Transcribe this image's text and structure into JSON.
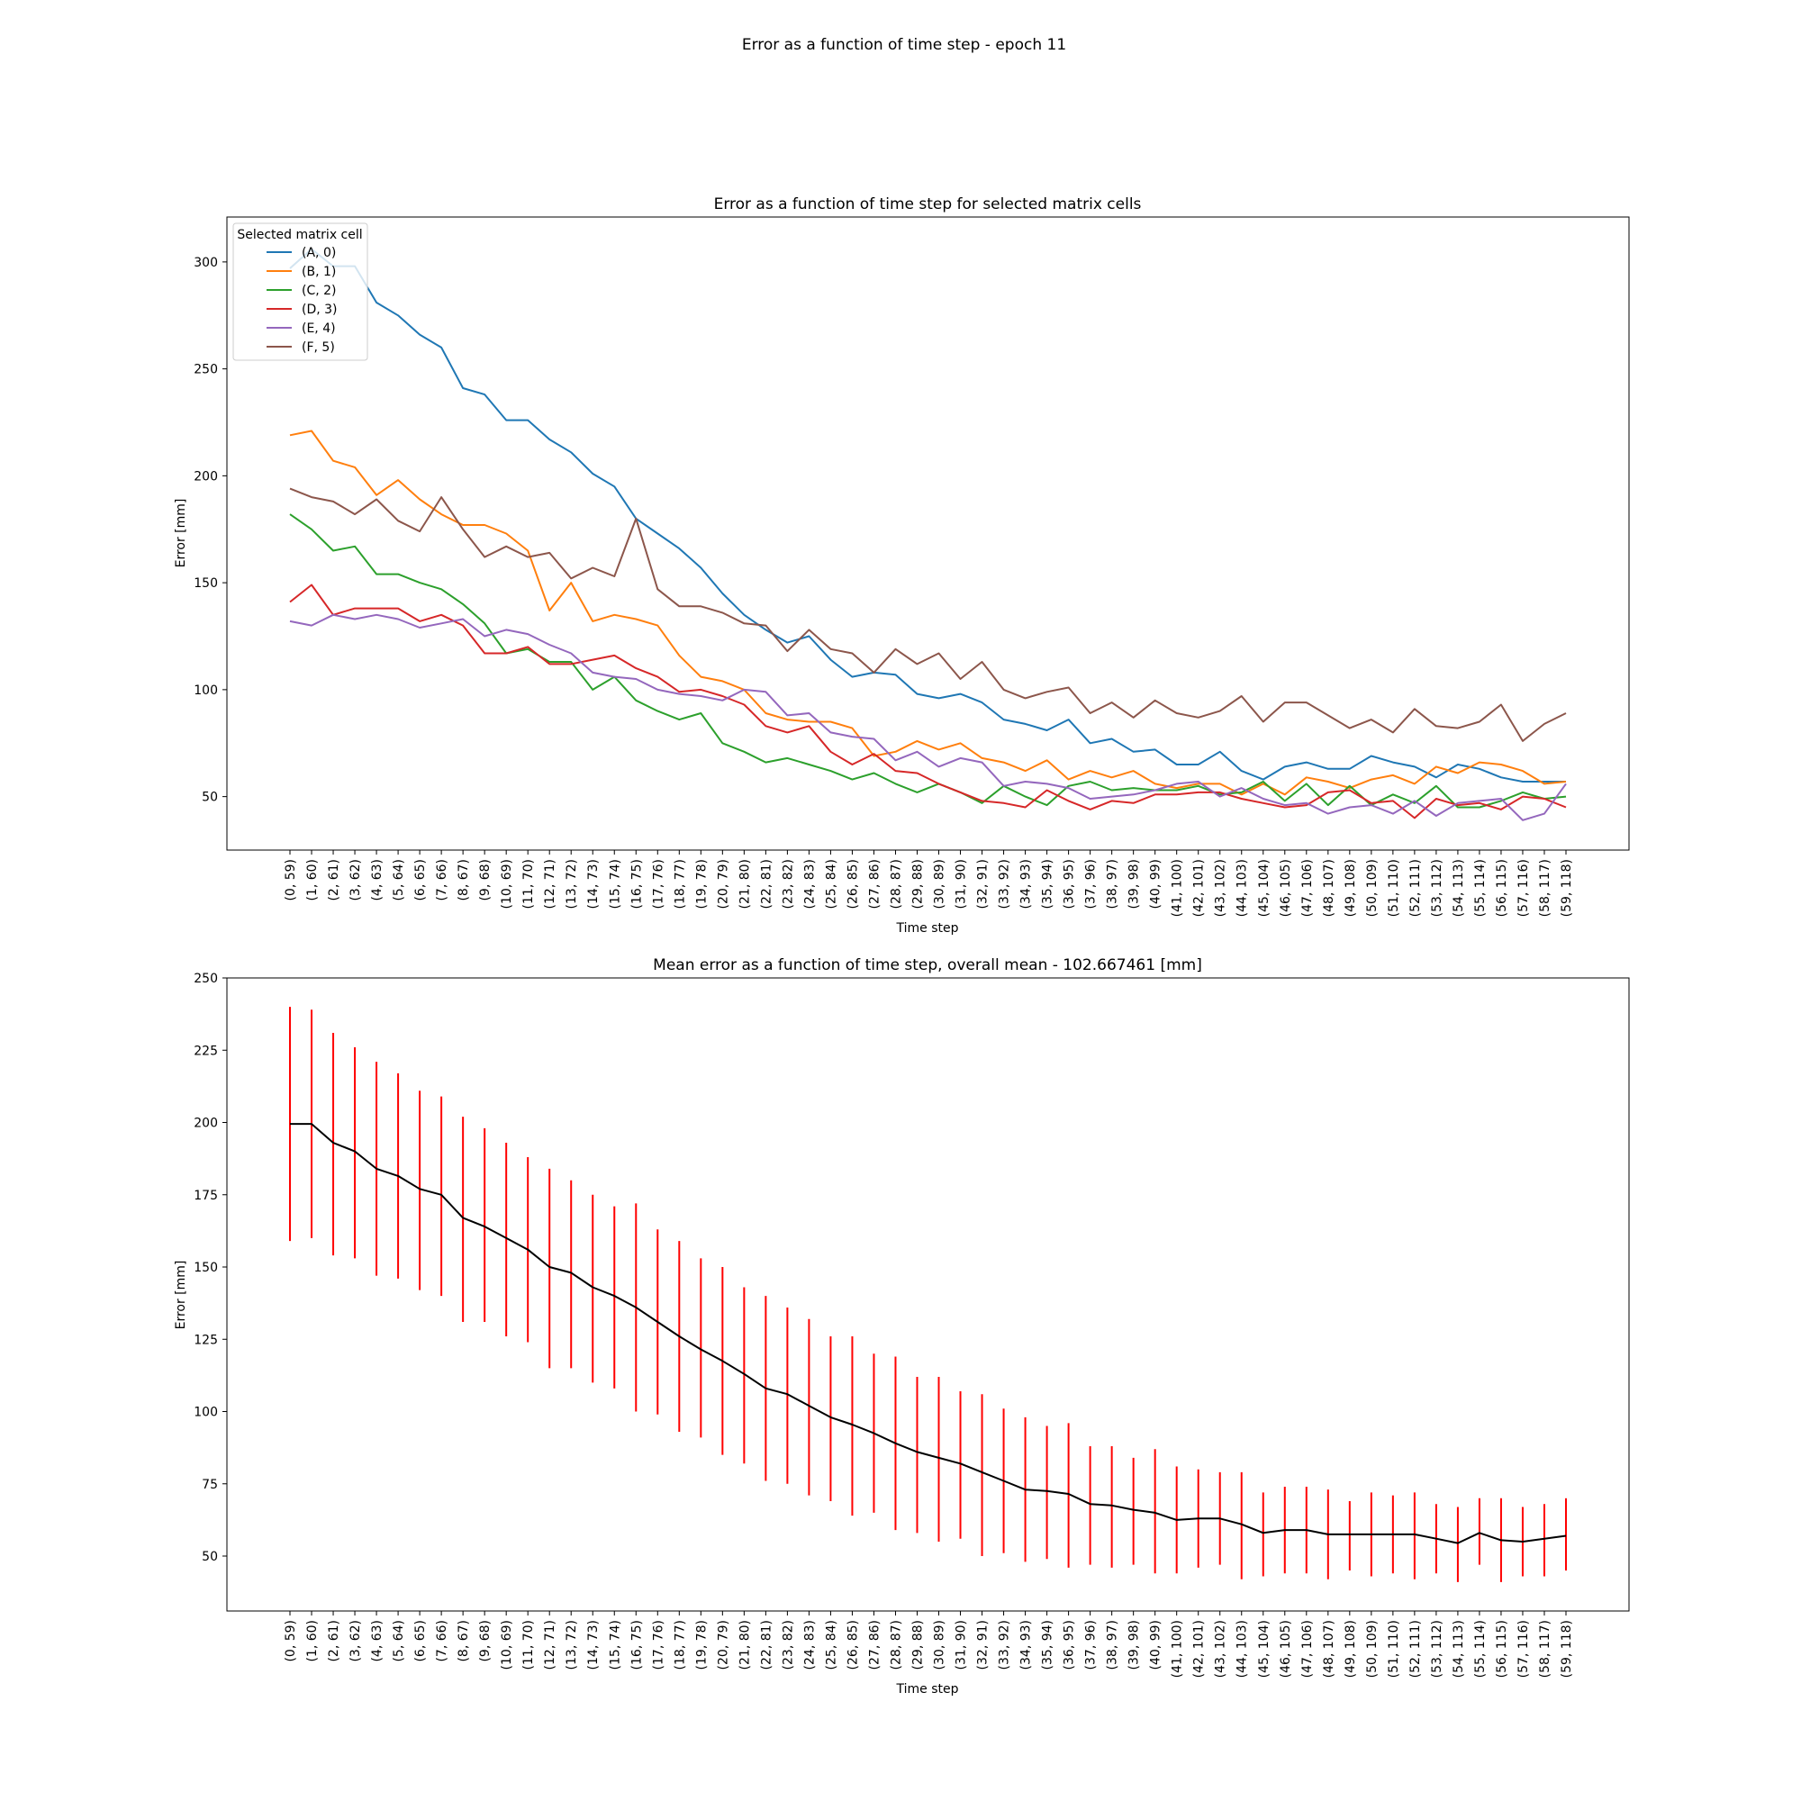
{
  "figure_title": "Error as a function of time step - epoch 11",
  "chart_data": [
    {
      "type": "line",
      "title": "Error as a function of time step for selected matrix cells",
      "xlabel": "Time step",
      "ylabel": "Error [mm]",
      "ylim": [
        25,
        321
      ],
      "yticks": [
        50,
        100,
        150,
        200,
        250,
        300
      ],
      "categories": [
        "(0, 59)",
        "(1, 60)",
        "(2, 61)",
        "(3, 62)",
        "(4, 63)",
        "(5, 64)",
        "(6, 65)",
        "(7, 66)",
        "(8, 67)",
        "(9, 68)",
        "(10, 69)",
        "(11, 70)",
        "(12, 71)",
        "(13, 72)",
        "(14, 73)",
        "(15, 74)",
        "(16, 75)",
        "(17, 76)",
        "(18, 77)",
        "(19, 78)",
        "(20, 79)",
        "(21, 80)",
        "(22, 81)",
        "(23, 82)",
        "(24, 83)",
        "(25, 84)",
        "(26, 85)",
        "(27, 86)",
        "(28, 87)",
        "(29, 88)",
        "(30, 89)",
        "(31, 90)",
        "(32, 91)",
        "(33, 92)",
        "(34, 93)",
        "(35, 94)",
        "(36, 95)",
        "(37, 96)",
        "(38, 97)",
        "(39, 98)",
        "(40, 99)",
        "(41, 100)",
        "(42, 101)",
        "(43, 102)",
        "(44, 103)",
        "(45, 104)",
        "(46, 105)",
        "(47, 106)",
        "(48, 107)",
        "(49, 108)",
        "(50, 109)",
        "(51, 110)",
        "(52, 111)",
        "(53, 112)",
        "(54, 113)",
        "(55, 114)",
        "(56, 115)",
        "(57, 116)",
        "(58, 117)",
        "(59, 118)"
      ],
      "legend": {
        "title": "Selected matrix cell",
        "placement": "top-left"
      },
      "grid": false,
      "series": [
        {
          "name": "(A, 0)",
          "color": "#1f77b4",
          "values": [
            297,
            306,
            298,
            298,
            281,
            275,
            266,
            260,
            241,
            238,
            226,
            226,
            217,
            211,
            201,
            195,
            180,
            173,
            166,
            157,
            145,
            135,
            128,
            122,
            125,
            114,
            106,
            108,
            107,
            98,
            96,
            98,
            94,
            86,
            84,
            81,
            86,
            75,
            77,
            71,
            72,
            65,
            65,
            71,
            62,
            58,
            64,
            66,
            63,
            63,
            69,
            66,
            64,
            59,
            65,
            63,
            59,
            57,
            57,
            57
          ]
        },
        {
          "name": "(B, 1)",
          "color": "#ff7f0e",
          "values": [
            219,
            221,
            207,
            204,
            191,
            198,
            189,
            182,
            177,
            177,
            173,
            165,
            137,
            150,
            132,
            135,
            133,
            130,
            116,
            106,
            104,
            100,
            89,
            86,
            85,
            85,
            82,
            69,
            71,
            76,
            72,
            75,
            68,
            66,
            62,
            67,
            58,
            62,
            59,
            62,
            56,
            54,
            56,
            56,
            51,
            56,
            51,
            59,
            57,
            54,
            58,
            60,
            56,
            64,
            61,
            66,
            65,
            62,
            56,
            57
          ]
        },
        {
          "name": "(C, 2)",
          "color": "#2ca02c",
          "values": [
            182,
            175,
            165,
            167,
            154,
            154,
            150,
            147,
            140,
            131,
            117,
            119,
            113,
            113,
            100,
            106,
            95,
            90,
            86,
            89,
            75,
            71,
            66,
            68,
            65,
            62,
            58,
            61,
            56,
            52,
            56,
            52,
            47,
            55,
            50,
            46,
            55,
            57,
            53,
            54,
            53,
            53,
            55,
            51,
            52,
            57,
            48,
            56,
            46,
            55,
            46,
            51,
            47,
            55,
            45,
            45,
            48,
            52,
            49,
            50
          ]
        },
        {
          "name": "(D, 3)",
          "color": "#d62728",
          "values": [
            141,
            149,
            135,
            138,
            138,
            138,
            132,
            135,
            130,
            117,
            117,
            120,
            112,
            112,
            114,
            116,
            110,
            106,
            99,
            100,
            97,
            93,
            83,
            80,
            83,
            71,
            65,
            70,
            62,
            61,
            56,
            52,
            48,
            47,
            45,
            53,
            48,
            44,
            48,
            47,
            51,
            51,
            52,
            52,
            49,
            47,
            45,
            46,
            52,
            53,
            47,
            48,
            40,
            49,
            46,
            47,
            44,
            50,
            49,
            45
          ]
        },
        {
          "name": "(E, 4)",
          "color": "#9467bd",
          "values": [
            132,
            130,
            135,
            133,
            135,
            133,
            129,
            131,
            133,
            125,
            128,
            126,
            121,
            117,
            108,
            106,
            105,
            100,
            98,
            97,
            95,
            100,
            99,
            88,
            89,
            80,
            78,
            77,
            67,
            71,
            64,
            68,
            66,
            55,
            57,
            56,
            54,
            49,
            50,
            51,
            53,
            56,
            57,
            50,
            54,
            49,
            46,
            47,
            42,
            45,
            46,
            42,
            48,
            41,
            47,
            48,
            49,
            39,
            42,
            56
          ]
        },
        {
          "name": "(F, 5)",
          "color": "#8c564b",
          "values": [
            194,
            190,
            188,
            182,
            189,
            179,
            174,
            190,
            175,
            162,
            167,
            162,
            164,
            152,
            157,
            153,
            180,
            147,
            139,
            139,
            136,
            131,
            130,
            118,
            128,
            119,
            117,
            108,
            119,
            112,
            117,
            105,
            113,
            100,
            96,
            99,
            101,
            89,
            94,
            87,
            95,
            89,
            87,
            90,
            97,
            85,
            94,
            94,
            88,
            82,
            86,
            80,
            91,
            83,
            82,
            85,
            93,
            76,
            84,
            89
          ]
        }
      ]
    },
    {
      "type": "line",
      "title": "Mean error as a function of time step, overall mean - 102.667461 [mm]",
      "xlabel": "Time step",
      "ylabel": "Error [mm]",
      "ylim": [
        31,
        250
      ],
      "yticks": [
        50,
        75,
        100,
        125,
        150,
        175,
        200,
        225,
        250
      ],
      "categories_ref": "same as first chart",
      "grid": false,
      "series": [
        {
          "name": "",
          "color": "#000000",
          "values": [
            199.5,
            199.5,
            193,
            190,
            184,
            181.5,
            177,
            175,
            167,
            164,
            160,
            156,
            150,
            148,
            143,
            140,
            136,
            131,
            126,
            121.5,
            117.5,
            113,
            108,
            106,
            102,
            98,
            95.5,
            92.5,
            89,
            86,
            84,
            82,
            79,
            76,
            73,
            72.5,
            71.5,
            68,
            67.5,
            66,
            65,
            62.5,
            63,
            63,
            61,
            58,
            59,
            59,
            57.5,
            57.5,
            57.5,
            57.5,
            57.5,
            56,
            54.5,
            58,
            55.5,
            55,
            56,
            57
          ]
        }
      ],
      "error_bars": {
        "color": "#ff0000",
        "low": [
          159,
          160,
          154,
          153,
          147,
          146,
          142,
          140,
          131,
          131,
          126,
          124,
          115,
          115,
          110,
          108,
          100,
          99,
          93,
          91,
          85,
          82,
          76,
          75,
          71,
          69,
          64,
          65,
          59,
          58,
          55,
          56,
          50,
          51,
          48,
          49,
          46,
          47,
          46,
          47,
          44,
          44,
          46,
          47,
          42,
          43,
          44,
          44,
          42,
          45,
          43,
          44,
          42,
          44,
          41,
          47,
          41,
          43,
          43,
          45
        ],
        "high": [
          240,
          239,
          231,
          226,
          221,
          217,
          211,
          209,
          202,
          198,
          193,
          188,
          184,
          180,
          175,
          171,
          172,
          163,
          159,
          153,
          150,
          143,
          140,
          136,
          132,
          126,
          126,
          120,
          119,
          112,
          112,
          107,
          106,
          101,
          98,
          95,
          96,
          88,
          88,
          84,
          87,
          81,
          80,
          79,
          79,
          72,
          74,
          74,
          73,
          69,
          72,
          71,
          72,
          68,
          67,
          70,
          70,
          67,
          68,
          70
        ]
      }
    }
  ]
}
